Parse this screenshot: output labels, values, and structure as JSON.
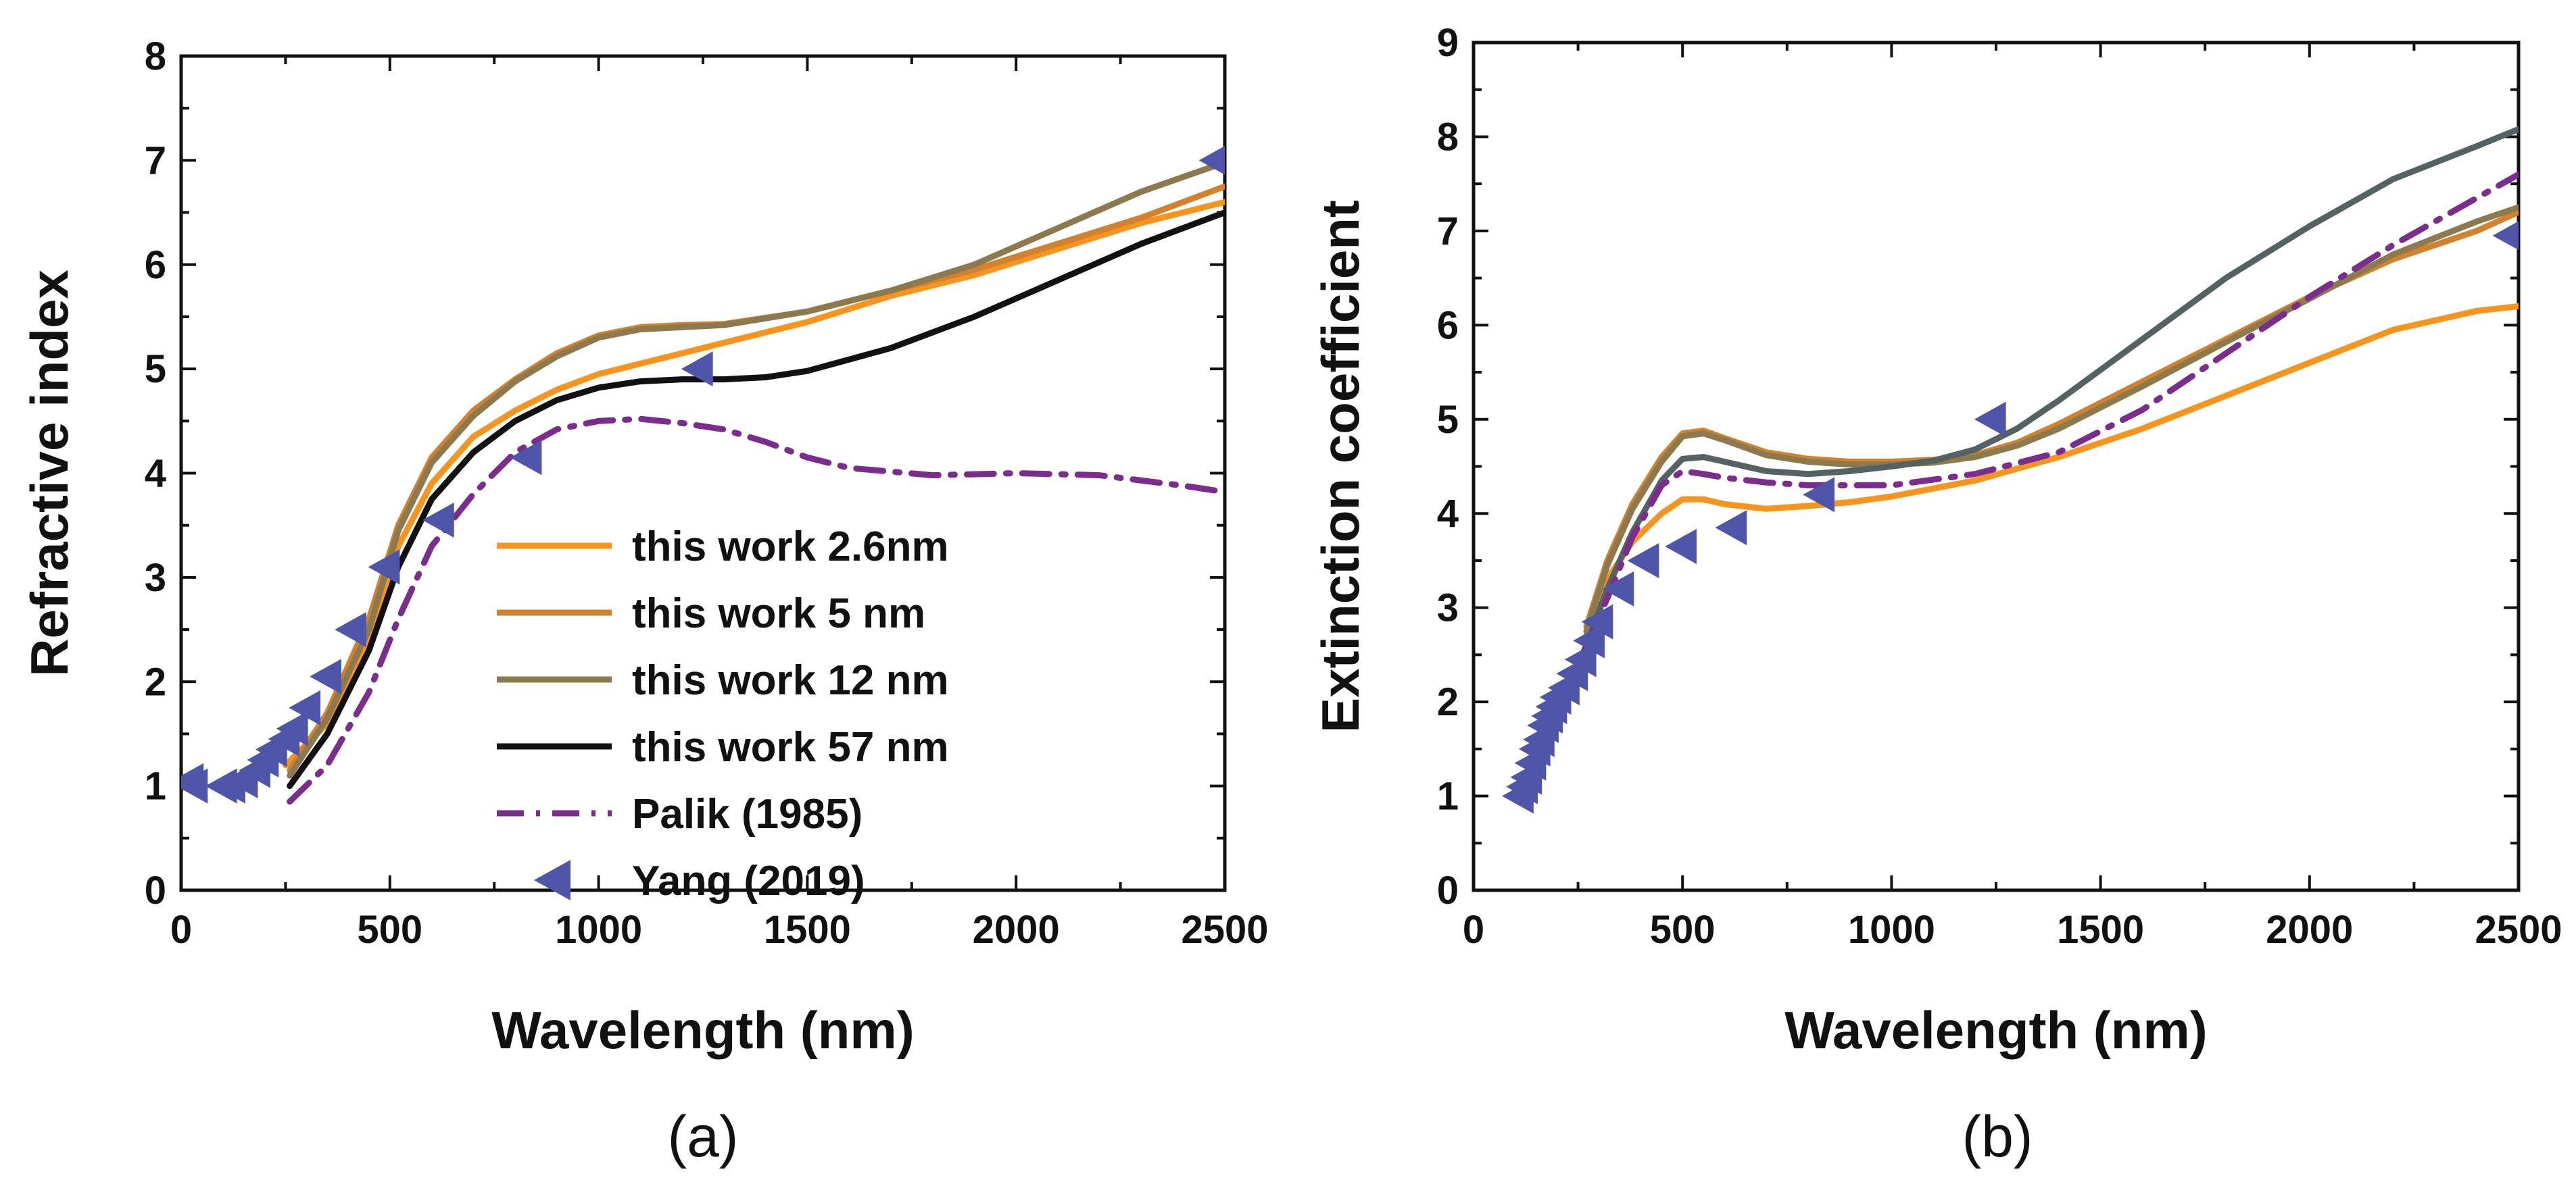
{
  "chart_data": [
    {
      "panel_label": "(a)",
      "type": "line",
      "xlabel": "Wavelength (nm)",
      "ylabel": "Refractive index",
      "xlim": [
        0,
        2500
      ],
      "ylim": [
        0,
        8
      ],
      "xticks": [
        "0",
        "500",
        "1000",
        "1500",
        "2000",
        "2500"
      ],
      "yticks": [
        "0",
        "1",
        "2",
        "3",
        "4",
        "5",
        "6",
        "7",
        "8"
      ],
      "legend_position": "center-right",
      "series": [
        {
          "name": "this work 2.6nm",
          "color": "#F7941D",
          "style": "solid",
          "x": [
            250,
            350,
            450,
            520,
            600,
            700,
            800,
            900,
            1000,
            1100,
            1200,
            1300,
            1500,
            1700,
            1900,
            2100,
            2300,
            2500
          ],
          "y": [
            1.2,
            1.6,
            2.4,
            3.3,
            3.9,
            4.35,
            4.6,
            4.8,
            4.95,
            5.05,
            5.15,
            5.25,
            5.45,
            5.7,
            5.9,
            6.15,
            6.4,
            6.6
          ]
        },
        {
          "name": "this work 5 nm",
          "color": "#D2822E",
          "style": "solid",
          "x": [
            260,
            350,
            450,
            520,
            600,
            700,
            800,
            900,
            1000,
            1100,
            1200,
            1300,
            1500,
            1700,
            1900,
            2100,
            2300,
            2500
          ],
          "y": [
            1.15,
            1.7,
            2.6,
            3.5,
            4.15,
            4.6,
            4.9,
            5.15,
            5.32,
            5.4,
            5.42,
            5.43,
            5.55,
            5.75,
            5.95,
            6.2,
            6.45,
            6.75
          ]
        },
        {
          "name": "this work 12 nm",
          "color": "#8C7A4E",
          "style": "solid",
          "x": [
            260,
            350,
            450,
            520,
            600,
            700,
            800,
            900,
            1000,
            1100,
            1200,
            1300,
            1500,
            1700,
            1900,
            2100,
            2300,
            2500
          ],
          "y": [
            1.1,
            1.65,
            2.5,
            3.45,
            4.1,
            4.55,
            4.88,
            5.12,
            5.3,
            5.38,
            5.4,
            5.42,
            5.55,
            5.75,
            6.0,
            6.35,
            6.7,
            6.98
          ]
        },
        {
          "name": "this work 57 nm",
          "color": "#111111",
          "style": "solid",
          "x": [
            260,
            350,
            450,
            520,
            600,
            700,
            800,
            900,
            1000,
            1100,
            1200,
            1300,
            1400,
            1500,
            1700,
            1900,
            2100,
            2300,
            2500
          ],
          "y": [
            1.0,
            1.5,
            2.3,
            3.1,
            3.75,
            4.2,
            4.5,
            4.7,
            4.82,
            4.88,
            4.9,
            4.9,
            4.92,
            4.98,
            5.2,
            5.5,
            5.85,
            6.2,
            6.5
          ]
        },
        {
          "name": "Palik (1985)",
          "color": "#7B2D8E",
          "style": "dashdot",
          "x": [
            260,
            350,
            450,
            520,
            600,
            700,
            800,
            900,
            1000,
            1100,
            1200,
            1300,
            1400,
            1500,
            1600,
            1800,
            2000,
            2200,
            2400,
            2500
          ],
          "y": [
            0.85,
            1.2,
            1.9,
            2.6,
            3.3,
            3.8,
            4.2,
            4.42,
            4.5,
            4.52,
            4.48,
            4.42,
            4.3,
            4.15,
            4.05,
            3.98,
            4.0,
            3.98,
            3.88,
            3.82
          ]
        },
        {
          "name": "Yang (2019)",
          "color": "#4F55A8",
          "style": "marker",
          "x": [
            20,
            30,
            100,
            120,
            150,
            180,
            200,
            220,
            250,
            270,
            300,
            350,
            410,
            490,
            620,
            830,
            1240,
            2480
          ],
          "y": [
            1.05,
            1.0,
            1.0,
            1.0,
            1.05,
            1.15,
            1.25,
            1.35,
            1.45,
            1.55,
            1.75,
            2.05,
            2.5,
            3.1,
            3.55,
            4.15,
            5.0,
            7.0
          ]
        }
      ]
    },
    {
      "panel_label": "(b)",
      "type": "line",
      "xlabel": "Wavelength (nm)",
      "ylabel": "Extinction coefficient",
      "xlim": [
        0,
        2500
      ],
      "ylim": [
        0,
        9
      ],
      "xticks": [
        "0",
        "500",
        "1000",
        "1500",
        "2000",
        "2500"
      ],
      "yticks": [
        "0",
        "1",
        "2",
        "3",
        "4",
        "5",
        "6",
        "7",
        "8",
        "9"
      ],
      "series": [
        {
          "name": "this work 2.6nm",
          "color": "#F7941D",
          "style": "solid",
          "x": [
            270,
            320,
            380,
            450,
            500,
            550,
            600,
            700,
            800,
            900,
            1000,
            1200,
            1400,
            1600,
            1800,
            2000,
            2200,
            2400,
            2500
          ],
          "y": [
            2.7,
            3.3,
            3.7,
            4.0,
            4.15,
            4.15,
            4.1,
            4.05,
            4.08,
            4.12,
            4.18,
            4.35,
            4.6,
            4.9,
            5.25,
            5.6,
            5.95,
            6.15,
            6.2
          ]
        },
        {
          "name": "this work 5 nm",
          "color": "#D2822E",
          "style": "solid",
          "x": [
            270,
            320,
            380,
            450,
            500,
            550,
            600,
            700,
            800,
            900,
            1000,
            1100,
            1200,
            1300,
            1400,
            1600,
            1800,
            2000,
            2200,
            2400,
            2500
          ],
          "y": [
            2.8,
            3.5,
            4.1,
            4.6,
            4.85,
            4.88,
            4.8,
            4.65,
            4.58,
            4.55,
            4.55,
            4.57,
            4.62,
            4.75,
            4.95,
            5.4,
            5.85,
            6.3,
            6.7,
            7.0,
            7.2
          ]
        },
        {
          "name": "this work 12 nm",
          "color": "#8C7A4E",
          "style": "solid",
          "x": [
            270,
            320,
            380,
            450,
            500,
            550,
            600,
            700,
            800,
            900,
            1000,
            1100,
            1200,
            1300,
            1400,
            1600,
            1800,
            2000,
            2200,
            2400,
            2500
          ],
          "y": [
            2.75,
            3.45,
            4.05,
            4.55,
            4.82,
            4.85,
            4.78,
            4.62,
            4.55,
            4.52,
            4.52,
            4.54,
            4.6,
            4.72,
            4.9,
            5.35,
            5.82,
            6.28,
            6.75,
            7.1,
            7.25
          ]
        },
        {
          "name": "this work 57 nm",
          "color": "#556263",
          "style": "solid",
          "x": [
            270,
            320,
            380,
            450,
            500,
            550,
            600,
            700,
            800,
            900,
            1000,
            1100,
            1200,
            1300,
            1400,
            1600,
            1800,
            2000,
            2200,
            2400,
            2500
          ],
          "y": [
            2.6,
            3.2,
            3.8,
            4.35,
            4.58,
            4.6,
            4.55,
            4.45,
            4.42,
            4.45,
            4.5,
            4.56,
            4.68,
            4.9,
            5.2,
            5.85,
            6.5,
            7.05,
            7.55,
            7.9,
            8.08
          ]
        },
        {
          "name": "Palik (1985)",
          "color": "#7B2D8E",
          "style": "dashdot",
          "x": [
            260,
            320,
            380,
            450,
            500,
            550,
            600,
            700,
            800,
            900,
            1000,
            1200,
            1400,
            1600,
            1800,
            2000,
            2200,
            2400,
            2500
          ],
          "y": [
            2.5,
            3.1,
            3.75,
            4.3,
            4.45,
            4.42,
            4.38,
            4.33,
            4.3,
            4.3,
            4.3,
            4.42,
            4.65,
            5.1,
            5.7,
            6.3,
            6.85,
            7.35,
            7.6
          ]
        },
        {
          "name": "Yang (2019)",
          "color": "#4F55A8",
          "style": "marker",
          "x": [
            110,
            120,
            130,
            140,
            150,
            160,
            170,
            180,
            190,
            200,
            220,
            240,
            260,
            280,
            300,
            350,
            410,
            500,
            620,
            830,
            1240,
            2480
          ],
          "y": [
            1.0,
            1.1,
            1.2,
            1.35,
            1.5,
            1.6,
            1.75,
            1.85,
            1.95,
            2.05,
            2.15,
            2.3,
            2.45,
            2.65,
            2.85,
            3.2,
            3.5,
            3.65,
            3.85,
            4.2,
            5.0,
            6.95
          ]
        }
      ]
    }
  ]
}
